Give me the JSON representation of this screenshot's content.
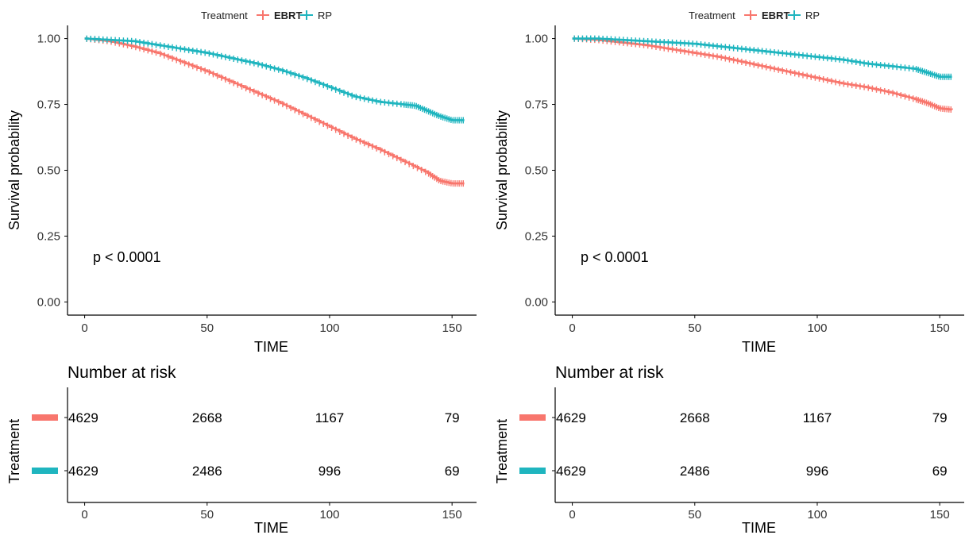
{
  "chart_data": [
    {
      "type": "line",
      "subtype": "kaplan-meier",
      "legend": {
        "title": "Treatment",
        "position": "top",
        "entries": [
          {
            "label": "EBRT",
            "color": "#F8766D"
          },
          {
            "label": "RP",
            "color": "#1FB5BF"
          }
        ]
      },
      "xlabel": "TIME",
      "ylabel": "Survival probability",
      "xlim": [
        -7,
        160
      ],
      "ylim": [
        -0.05,
        1.05
      ],
      "x_ticks": [
        "0",
        "50",
        "100",
        "150"
      ],
      "y_ticks": [
        "0.00",
        "0.25",
        "0.50",
        "0.75",
        "1.00"
      ],
      "grid": false,
      "pvalue_text": "p < 0.0001",
      "series": [
        {
          "name": "EBRT",
          "color": "#F8766D",
          "x": [
            0,
            10,
            20,
            30,
            40,
            50,
            60,
            70,
            80,
            90,
            100,
            110,
            120,
            130,
            140,
            145,
            150,
            155
          ],
          "y": [
            1.0,
            0.99,
            0.97,
            0.945,
            0.91,
            0.875,
            0.835,
            0.795,
            0.755,
            0.71,
            0.665,
            0.62,
            0.58,
            0.535,
            0.49,
            0.46,
            0.45,
            0.45
          ]
        },
        {
          "name": "RP",
          "color": "#1FB5BF",
          "x": [
            0,
            10,
            20,
            30,
            40,
            50,
            60,
            70,
            80,
            90,
            100,
            110,
            120,
            130,
            135,
            140,
            145,
            150,
            155
          ],
          "y": [
            1.0,
            0.995,
            0.99,
            0.975,
            0.96,
            0.945,
            0.925,
            0.905,
            0.88,
            0.85,
            0.815,
            0.78,
            0.76,
            0.75,
            0.745,
            0.725,
            0.705,
            0.69,
            0.69
          ]
        }
      ],
      "risk_table": {
        "title": "Number at risk",
        "ylabel": "Treatment",
        "xlabel": "TIME",
        "x": [
          0,
          50,
          100,
          150
        ],
        "rows": [
          {
            "color": "#F8766D",
            "values": [
              "4629",
              "2668",
              "1167",
              "79"
            ]
          },
          {
            "color": "#1FB5BF",
            "values": [
              "4629",
              "2486",
              "996",
              "69"
            ]
          }
        ]
      }
    },
    {
      "type": "line",
      "subtype": "kaplan-meier",
      "legend": {
        "title": "Treatment",
        "position": "top",
        "entries": [
          {
            "label": "EBRT",
            "color": "#F8766D"
          },
          {
            "label": "RP",
            "color": "#1FB5BF"
          }
        ]
      },
      "xlabel": "TIME",
      "ylabel": "Survival probability",
      "xlim": [
        -7,
        160
      ],
      "ylim": [
        -0.05,
        1.05
      ],
      "x_ticks": [
        "0",
        "50",
        "100",
        "150"
      ],
      "y_ticks": [
        "0.00",
        "0.25",
        "0.50",
        "0.75",
        "1.00"
      ],
      "grid": false,
      "pvalue_text": "p < 0.0001",
      "series": [
        {
          "name": "EBRT",
          "color": "#F8766D",
          "x": [
            0,
            10,
            20,
            30,
            40,
            50,
            60,
            70,
            80,
            90,
            100,
            110,
            120,
            130,
            140,
            145,
            150,
            155
          ],
          "y": [
            1.0,
            0.995,
            0.985,
            0.975,
            0.96,
            0.945,
            0.93,
            0.91,
            0.89,
            0.87,
            0.85,
            0.83,
            0.815,
            0.795,
            0.77,
            0.755,
            0.735,
            0.73
          ]
        },
        {
          "name": "RP",
          "color": "#1FB5BF",
          "x": [
            0,
            10,
            20,
            30,
            40,
            50,
            60,
            70,
            80,
            90,
            100,
            110,
            120,
            130,
            140,
            145,
            150,
            155
          ],
          "y": [
            1.0,
            1.0,
            0.995,
            0.99,
            0.985,
            0.98,
            0.97,
            0.96,
            0.95,
            0.94,
            0.93,
            0.92,
            0.905,
            0.895,
            0.885,
            0.87,
            0.855,
            0.855
          ]
        }
      ],
      "risk_table": {
        "title": "Number at risk",
        "ylabel": "Treatment",
        "xlabel": "TIME",
        "x": [
          0,
          50,
          100,
          150
        ],
        "rows": [
          {
            "color": "#F8766D",
            "values": [
              "4629",
              "2668",
              "1167",
              "79"
            ]
          },
          {
            "color": "#1FB5BF",
            "values": [
              "4629",
              "2486",
              "996",
              "69"
            ]
          }
        ]
      }
    }
  ]
}
